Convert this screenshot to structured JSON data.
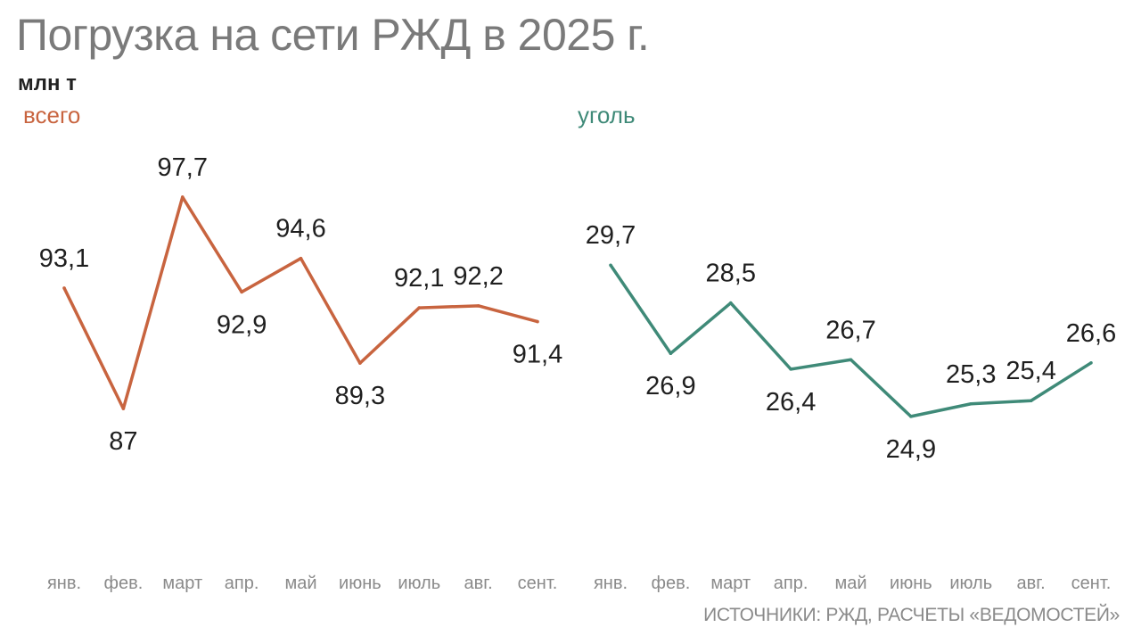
{
  "title": "Погрузка на сети РЖД в 2025 г.",
  "unit": "млн т",
  "source": "ИСТОЧНИКИ: РЖД, РАСЧЕТЫ «ВЕДОМОСТЕЙ»",
  "colors": {
    "total": "#c8643f",
    "coal": "#3f8a78",
    "title": "#7a7a7a",
    "ticks": "#8a8a8a"
  },
  "chart_data": [
    {
      "type": "line",
      "name": "всего",
      "categories": [
        "янв.",
        "фев.",
        "март",
        "апр.",
        "май",
        "июнь",
        "июль",
        "авг.",
        "сент."
      ],
      "values": [
        93.1,
        87,
        97.7,
        92.9,
        94.6,
        89.3,
        92.1,
        92.2,
        91.4
      ],
      "value_labels": [
        "93,1",
        "87",
        "97,7",
        "92,9",
        "94,6",
        "89,3",
        "92,1",
        "92,2",
        "91,4"
      ],
      "ylim": [
        81.5,
        100.0
      ],
      "grid": false
    },
    {
      "type": "line",
      "name": "уголь",
      "categories": [
        "янв.",
        "фев.",
        "март",
        "апр.",
        "май",
        "июнь",
        "июль",
        "авг.",
        "сент."
      ],
      "values": [
        29.7,
        26.9,
        28.5,
        26.4,
        26.7,
        24.9,
        25.3,
        25.4,
        26.6
      ],
      "value_labels": [
        "29,7",
        "26,9",
        "28,5",
        "26,4",
        "26,7",
        "24,9",
        "25,3",
        "25,4",
        "26,6"
      ],
      "ylim": [
        21.7,
        33.3
      ],
      "grid": false
    }
  ]
}
